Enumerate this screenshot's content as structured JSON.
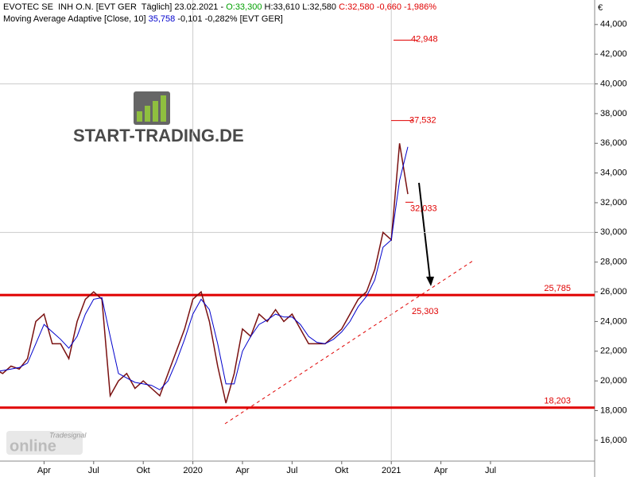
{
  "chart_data": {
    "type": "line",
    "header": [
      {
        "text": "EVOTEC SE  INH O.N. [EVT GER  Täglich] 23.02.2021 - ",
        "color": "#000000"
      },
      {
        "text": "O:33,300",
        "color": "#00a000"
      },
      {
        "text": " H:33,610 L:32,580 ",
        "color": "#000000"
      },
      {
        "text": "C:32,580 -0,660 -1,986%",
        "color": "#e00000"
      }
    ],
    "subheader": [
      {
        "text": "Moving Average Adaptive [Close, 10] ",
        "color": "#000000"
      },
      {
        "text": "35,758",
        "color": "#0000cc"
      },
      {
        "text": " -0,101 -0,282% [EVT GER]",
        "color": "#000000"
      }
    ],
    "logo": "START-TRADING.DE",
    "watermark": {
      "brand": "Tradesignal",
      "product": "online"
    },
    "currency": "€",
    "categories": [
      null,
      null,
      null,
      null,
      null,
      null,
      "Apr",
      null,
      null,
      null,
      null,
      null,
      "Jul",
      null,
      null,
      null,
      null,
      null,
      "Okt",
      null,
      null,
      null,
      null,
      null,
      "2020",
      null,
      null,
      null,
      null,
      null,
      "Apr",
      null,
      null,
      null,
      null,
      null,
      "Jul",
      null,
      null,
      null,
      null,
      null,
      "Okt",
      null,
      null,
      null,
      null,
      null,
      "2021",
      null,
      null,
      null,
      null,
      null,
      "Apr",
      null,
      null,
      null,
      null,
      null,
      "Jul",
      null,
      null,
      null,
      null,
      null,
      null,
      null,
      null,
      null,
      null,
      null
    ],
    "series": [
      {
        "name": "EVOTEC SE  INH O.N.",
        "color": "#7a1010",
        "values": [
          20.8,
          20.5,
          21.0,
          20.8,
          21.5,
          24.0,
          24.5,
          22.5,
          22.5,
          21.5,
          24.0,
          25.5,
          26.0,
          25.5,
          19.0,
          20.0,
          20.5,
          19.5,
          20.0,
          19.5,
          19.0,
          20.5,
          22.0,
          23.5,
          25.5,
          26.0,
          24.0,
          21.0,
          18.5,
          20.5,
          23.5,
          23.0,
          24.5,
          24.0,
          24.8,
          24.0,
          24.5,
          23.5,
          22.5,
          22.5,
          22.5,
          23.0,
          23.5,
          24.5,
          25.5,
          26.0,
          27.5,
          30.0,
          29.5,
          36.0,
          32.58,
          null,
          null,
          null,
          null,
          null,
          null,
          null,
          null,
          null,
          null,
          null,
          null,
          null,
          null,
          null,
          null,
          null,
          null,
          null,
          null,
          null
        ]
      },
      {
        "name": "Moving Average Adaptive",
        "color": "#0000cc",
        "values": [
          20.6,
          20.7,
          20.8,
          20.9,
          21.2,
          22.5,
          23.8,
          23.3,
          22.8,
          22.2,
          23.0,
          24.5,
          25.5,
          25.6,
          23.0,
          20.5,
          20.2,
          19.9,
          19.8,
          19.7,
          19.4,
          20.0,
          21.3,
          22.8,
          24.5,
          25.5,
          24.8,
          22.5,
          19.8,
          19.8,
          22.0,
          23.0,
          23.8,
          24.1,
          24.5,
          24.3,
          24.3,
          23.8,
          23.0,
          22.6,
          22.5,
          22.8,
          23.3,
          24.0,
          25.0,
          25.7,
          26.8,
          29.0,
          29.5,
          33.5,
          35.758,
          null,
          null,
          null,
          null,
          null,
          null,
          null,
          null,
          null,
          null,
          null,
          null,
          null,
          null,
          null,
          null,
          null,
          null,
          null,
          null,
          null
        ]
      }
    ],
    "ylim": [
      14.6,
      45.65
    ],
    "yticks": [
      {
        "value": 16,
        "label": "16,000"
      },
      {
        "value": 18,
        "label": "18,000"
      },
      {
        "value": 20,
        "label": "20,000"
      },
      {
        "value": 22,
        "label": "22,000"
      },
      {
        "value": 24,
        "label": "24,000"
      },
      {
        "value": 26,
        "label": "26,000"
      },
      {
        "value": 28,
        "label": "28,000"
      },
      {
        "value": 30,
        "label": "30,000"
      },
      {
        "value": 32,
        "label": "32,000"
      },
      {
        "value": 34,
        "label": "34,000"
      },
      {
        "value": 36,
        "label": "36,000"
      },
      {
        "value": 38,
        "label": "38,000"
      },
      {
        "value": 40,
        "label": "40,000"
      },
      {
        "value": 42,
        "label": "42,000"
      },
      {
        "value": 44,
        "label": "44,000"
      }
    ],
    "ygrid": [
      30,
      40
    ],
    "levels": [
      {
        "value": 25.785,
        "label": "25,785",
        "color": "#e00000"
      },
      {
        "value": 18.203,
        "label": "18,203",
        "color": "#e00000"
      }
    ],
    "price_labels": [
      {
        "value": 42.948,
        "label": "42,948"
      },
      {
        "value": 37.532,
        "label": "37,532"
      },
      {
        "value": 32.033,
        "label": "32,033"
      },
      {
        "value": 25.303,
        "label": "25,303"
      }
    ]
  }
}
